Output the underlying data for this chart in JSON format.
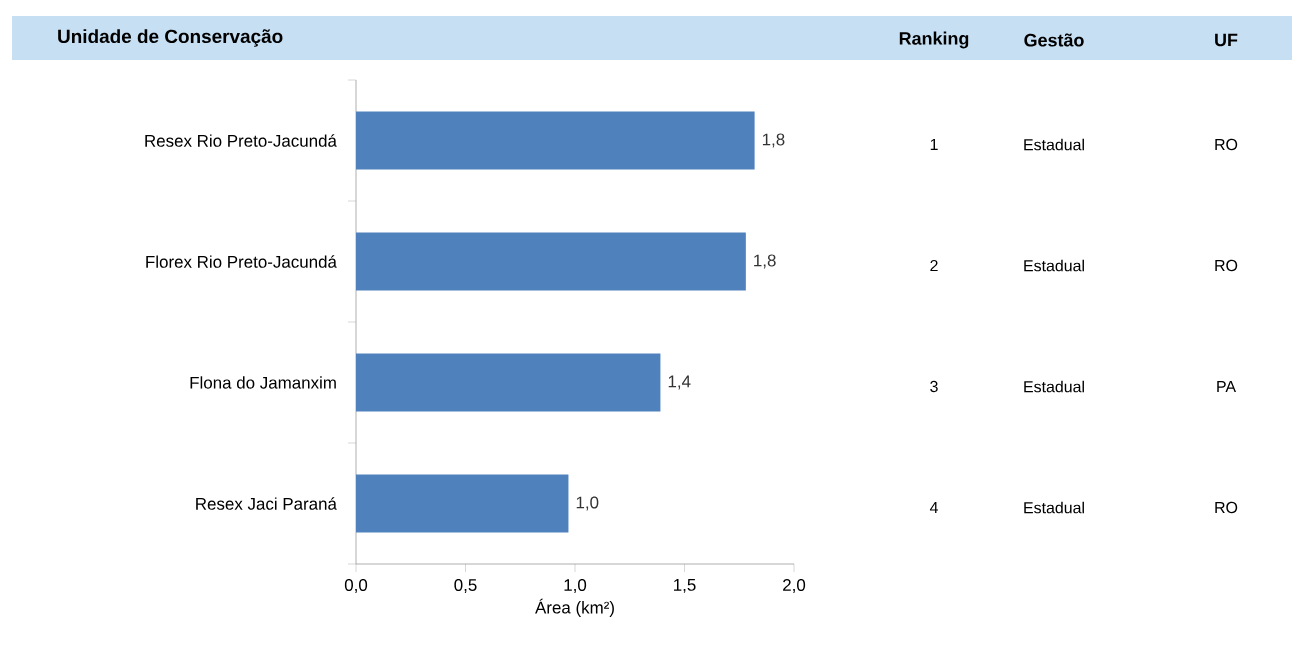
{
  "chart_data": {
    "type": "bar",
    "orientation": "horizontal",
    "title": "Unidade de Conservação",
    "xlabel": "Área (km²)",
    "categories": [
      "Resex  Rio Preto-Jacundá",
      "Florex  Rio Preto-Jacundá",
      "Flona do Jamanxim",
      "Resex Jaci Paraná"
    ],
    "values": [
      1.82,
      1.78,
      1.39,
      0.97
    ],
    "value_labels": [
      "1,8",
      "1,8",
      "1,4",
      "1,0"
    ],
    "color": "#4f81bd",
    "xlim": [
      0,
      2
    ],
    "xticks": [
      {
        "value": 0,
        "label": "0,0"
      },
      {
        "value": 0.5,
        "label": "0,5"
      },
      {
        "value": 1,
        "label": "1,0"
      },
      {
        "value": 1.5,
        "label": "1,5"
      },
      {
        "value": 2,
        "label": "2,0"
      }
    ],
    "grid": false,
    "annotations": [
      "Ranking",
      "Gestão",
      "UF",
      "1",
      "Estadual",
      "RO",
      "2",
      "Estadual",
      "RO",
      "3",
      "Estadual",
      "PA",
      "4",
      "Estadual",
      "RO"
    ]
  }
}
